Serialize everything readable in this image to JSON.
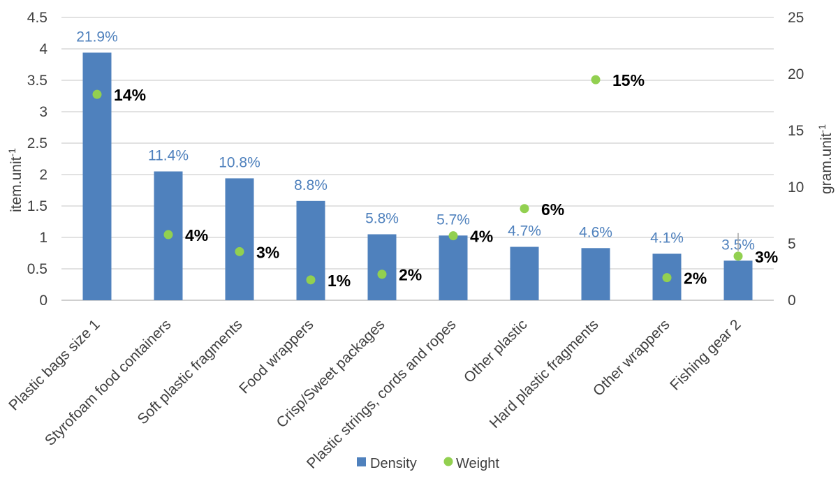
{
  "chart_data": {
    "type": "bar",
    "categories": [
      "Plastic bags size 1",
      "Styrofoam food containers",
      "Soft plastic fragments",
      "Food wrappers",
      "Crisp/Sweet packages",
      "Plastic strings, cords and ropes",
      "Other plastic",
      "Hard plastic fragments",
      "Other wrappers",
      "Fishing gear 2"
    ],
    "series": [
      {
        "name": "Density",
        "type": "bar",
        "axis": "left",
        "values": [
          3.94,
          2.05,
          1.94,
          1.58,
          1.05,
          1.03,
          0.85,
          0.83,
          0.74,
          0.63
        ],
        "labels": [
          "21.9%",
          "11.4%",
          "10.8%",
          "8.8%",
          "5.8%",
          "5.7%",
          "4.7%",
          "4.6%",
          "4.1%",
          "3.5%"
        ],
        "color": "#4f81bd"
      },
      {
        "name": "Weight",
        "type": "scatter",
        "axis": "right",
        "values": [
          18.2,
          5.8,
          4.3,
          1.8,
          2.3,
          5.7,
          8.1,
          19.5,
          2.0,
          3.9
        ],
        "labels": [
          "14%",
          "4%",
          "3%",
          "1%",
          "2%",
          "4%",
          "6%",
          "15%",
          "2%",
          "3%"
        ],
        "color": "#92d050"
      }
    ],
    "y_left": {
      "label": "item.unit",
      "label_sup": "-1",
      "ylim": [
        0,
        4.5
      ],
      "ticks": [
        "0",
        "0.5",
        "1",
        "1.5",
        "2",
        "2.5",
        "3",
        "3.5",
        "4",
        "4.5"
      ]
    },
    "y_right": {
      "label": "gram.unit",
      "label_sup": "-1",
      "ylim": [
        0,
        25
      ],
      "ticks": [
        "0",
        "5",
        "10",
        "15",
        "20",
        "25"
      ]
    },
    "grid": true,
    "legend": "bottom"
  }
}
